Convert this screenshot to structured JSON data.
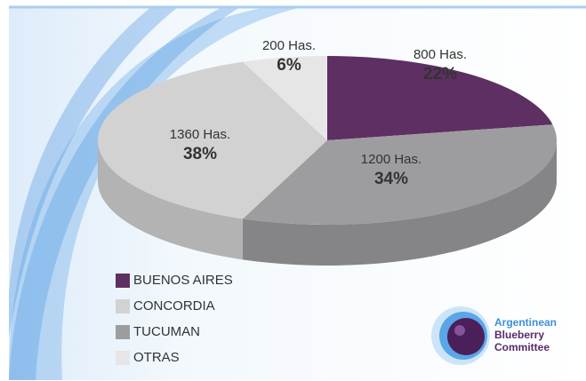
{
  "chart_data": {
    "type": "pie3d",
    "categories": [
      "BUENOS AIRES",
      "CONCORDIA",
      "TUCUMAN",
      "OTRAS"
    ],
    "values": [
      22,
      38,
      34,
      6
    ],
    "value_labels": [
      "22%",
      "38%",
      "34%",
      "6%"
    ],
    "area_labels": [
      "800 Has.",
      "1360 Has.",
      "1200 Has.",
      "200 Has."
    ],
    "colors": [
      "#5e2f63",
      "#d2d2d2",
      "#9d9da0",
      "#e6e6e6"
    ],
    "legend": "bottom-left"
  },
  "logo": [
    "Argentinean",
    "Blueberry",
    "Committee"
  ]
}
